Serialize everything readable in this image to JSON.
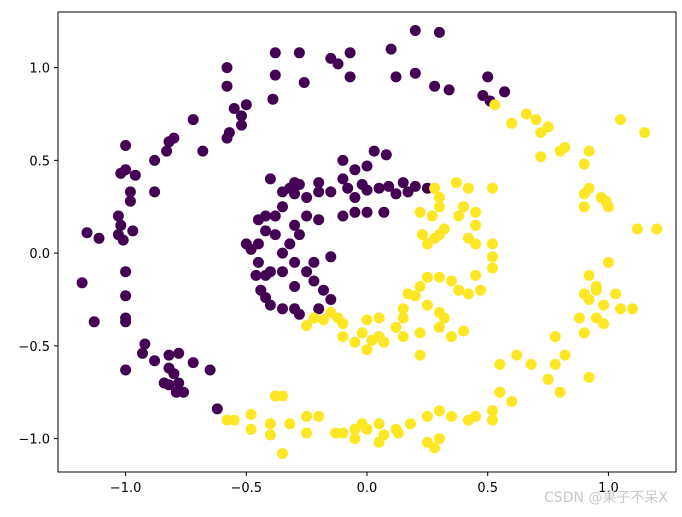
{
  "chart_data": {
    "type": "scatter",
    "title": "",
    "xlabel": "",
    "ylabel": "",
    "xlim": [
      -1.28,
      1.28
    ],
    "ylim": [
      -1.18,
      1.3
    ],
    "xticks": [
      -1.0,
      -0.5,
      0.0,
      0.5,
      1.0
    ],
    "yticks": [
      -1.0,
      -0.5,
      0.0,
      0.5,
      1.0
    ],
    "xtick_labels": [
      "−1.0",
      "−0.5",
      "0.0",
      "0.5",
      "1.0"
    ],
    "ytick_labels": [
      "−1.0",
      "−0.5",
      "0.0",
      "0.5",
      "1.0"
    ],
    "grid": false,
    "series": [
      {
        "color": "#440154",
        "points": [
          [
            0.2,
            1.2
          ],
          [
            0.3,
            1.19
          ],
          [
            0.1,
            1.1
          ],
          [
            -0.38,
            1.08
          ],
          [
            -0.28,
            1.08
          ],
          [
            -0.07,
            1.08
          ],
          [
            -0.15,
            1.05
          ],
          [
            -0.12,
            1.02
          ],
          [
            -0.07,
            0.95
          ],
          [
            0.12,
            0.95
          ],
          [
            -0.38,
            0.96
          ],
          [
            0.2,
            0.97
          ],
          [
            -0.58,
            1.0
          ],
          [
            0.28,
            0.9
          ],
          [
            0.34,
            0.88
          ],
          [
            0.5,
            0.95
          ],
          [
            -0.58,
            0.9
          ],
          [
            -0.26,
            0.92
          ],
          [
            -0.5,
            0.8
          ],
          [
            -0.55,
            0.78
          ],
          [
            -0.39,
            0.83
          ],
          [
            0.48,
            0.85
          ],
          [
            0.51,
            0.82
          ],
          [
            0.57,
            0.87
          ],
          [
            -0.52,
            0.74
          ],
          [
            -0.72,
            0.72
          ],
          [
            -0.52,
            0.69
          ],
          [
            -0.57,
            0.65
          ],
          [
            -0.58,
            0.62
          ],
          [
            -0.68,
            0.55
          ],
          [
            -0.8,
            0.62
          ],
          [
            -0.82,
            0.6
          ],
          [
            -0.83,
            0.55
          ],
          [
            -0.88,
            0.5
          ],
          [
            -1.0,
            0.58
          ],
          [
            -1.0,
            0.45
          ],
          [
            -1.02,
            0.43
          ],
          [
            -0.96,
            0.42
          ],
          [
            -0.98,
            0.33
          ],
          [
            -0.98,
            0.28
          ],
          [
            -0.88,
            0.33
          ],
          [
            -1.03,
            0.2
          ],
          [
            -1.02,
            0.15
          ],
          [
            -1.03,
            0.1
          ],
          [
            -1.01,
            0.07
          ],
          [
            -0.97,
            0.12
          ],
          [
            -1.11,
            0.08
          ],
          [
            -1.16,
            0.11
          ],
          [
            -1.18,
            -0.16
          ],
          [
            -1.0,
            -0.1
          ],
          [
            -1.0,
            -0.23
          ],
          [
            -1.0,
            -0.37
          ],
          [
            -1.13,
            -0.37
          ],
          [
            -1.0,
            -0.35
          ],
          [
            -0.92,
            -0.49
          ],
          [
            -0.93,
            -0.54
          ],
          [
            -1.0,
            -0.63
          ],
          [
            -0.88,
            -0.58
          ],
          [
            -0.82,
            -0.55
          ],
          [
            -0.78,
            -0.54
          ],
          [
            -0.82,
            -0.62
          ],
          [
            -0.72,
            -0.59
          ],
          [
            -0.84,
            -0.7
          ],
          [
            -0.82,
            -0.71
          ],
          [
            -0.8,
            -0.65
          ],
          [
            -0.79,
            -0.75
          ],
          [
            -0.76,
            -0.75
          ],
          [
            -0.78,
            -0.7
          ],
          [
            -0.65,
            -0.63
          ],
          [
            -0.62,
            -0.84
          ],
          [
            -0.4,
            0.4
          ],
          [
            -0.3,
            0.38
          ],
          [
            -0.35,
            0.33
          ],
          [
            -0.32,
            0.35
          ],
          [
            -0.28,
            0.37
          ],
          [
            -0.2,
            0.38
          ],
          [
            -0.1,
            0.4
          ],
          [
            -0.05,
            0.45
          ],
          [
            0.0,
            0.47
          ],
          [
            0.03,
            0.55
          ],
          [
            -0.1,
            0.5
          ],
          [
            0.08,
            0.53
          ],
          [
            0.09,
            0.36
          ],
          [
            0.15,
            0.38
          ],
          [
            0.17,
            0.33
          ],
          [
            0.2,
            0.36
          ],
          [
            0.25,
            0.35
          ],
          [
            0.12,
            0.32
          ],
          [
            0.05,
            0.35
          ],
          [
            -0.02,
            0.37
          ],
          [
            0.0,
            0.34
          ],
          [
            -0.05,
            0.3
          ],
          [
            -0.08,
            0.35
          ],
          [
            -0.15,
            0.33
          ],
          [
            -0.2,
            0.33
          ],
          [
            -0.25,
            0.3
          ],
          [
            -0.3,
            0.32
          ],
          [
            -0.35,
            0.25
          ],
          [
            -0.38,
            0.2
          ],
          [
            -0.42,
            0.2
          ],
          [
            -0.45,
            0.18
          ],
          [
            -0.42,
            0.12
          ],
          [
            -0.45,
            0.05
          ],
          [
            -0.48,
            0.02
          ],
          [
            -0.5,
            0.05
          ],
          [
            -0.45,
            -0.05
          ],
          [
            -0.4,
            -0.1
          ],
          [
            -0.42,
            -0.12
          ],
          [
            -0.46,
            -0.12
          ],
          [
            -0.44,
            -0.2
          ],
          [
            -0.42,
            -0.24
          ],
          [
            -0.4,
            -0.28
          ],
          [
            -0.35,
            -0.3
          ],
          [
            -0.3,
            -0.3
          ],
          [
            -0.28,
            -0.33
          ],
          [
            -0.2,
            -0.3
          ],
          [
            -0.15,
            -0.25
          ],
          [
            -0.18,
            -0.2
          ],
          [
            -0.22,
            -0.15
          ],
          [
            -0.25,
            -0.1
          ],
          [
            -0.3,
            -0.05
          ],
          [
            -0.35,
            0.0
          ],
          [
            -0.32,
            0.05
          ],
          [
            -0.28,
            0.1
          ],
          [
            -0.3,
            0.15
          ],
          [
            -0.25,
            0.2
          ],
          [
            -0.2,
            0.18
          ],
          [
            -0.1,
            0.2
          ],
          [
            -0.05,
            0.22
          ],
          [
            0.0,
            0.22
          ],
          [
            0.07,
            0.22
          ],
          [
            -0.3,
            -0.18
          ],
          [
            -0.35,
            -0.1
          ],
          [
            -0.22,
            -0.05
          ],
          [
            -0.15,
            -0.02
          ],
          [
            -0.38,
            0.1
          ]
        ]
      },
      {
        "color": "#fde725",
        "points": [
          [
            0.53,
            0.8
          ],
          [
            0.6,
            0.7
          ],
          [
            0.7,
            0.72
          ],
          [
            0.66,
            0.75
          ],
          [
            0.75,
            0.68
          ],
          [
            0.72,
            0.65
          ],
          [
            1.05,
            0.72
          ],
          [
            1.15,
            0.65
          ],
          [
            0.8,
            0.55
          ],
          [
            0.82,
            0.57
          ],
          [
            0.92,
            0.55
          ],
          [
            0.72,
            0.52
          ],
          [
            0.9,
            0.48
          ],
          [
            0.92,
            0.35
          ],
          [
            0.97,
            0.3
          ],
          [
            0.99,
            0.28
          ],
          [
            1.0,
            0.25
          ],
          [
            0.9,
            0.32
          ],
          [
            0.9,
            0.25
          ],
          [
            1.12,
            0.13
          ],
          [
            1.2,
            0.13
          ],
          [
            0.52,
            0.35
          ],
          [
            0.37,
            0.38
          ],
          [
            0.42,
            0.35
          ],
          [
            0.28,
            0.35
          ],
          [
            0.3,
            0.3
          ],
          [
            0.3,
            0.25
          ],
          [
            0.4,
            0.25
          ],
          [
            0.38,
            0.2
          ],
          [
            0.45,
            0.22
          ],
          [
            0.45,
            0.15
          ],
          [
            0.32,
            0.13
          ],
          [
            0.3,
            0.1
          ],
          [
            0.28,
            0.08
          ],
          [
            0.27,
            0.2
          ],
          [
            0.22,
            0.22
          ],
          [
            0.23,
            0.1
          ],
          [
            0.25,
            0.05
          ],
          [
            0.42,
            0.08
          ],
          [
            0.45,
            0.05
          ],
          [
            0.52,
            0.05
          ],
          [
            0.52,
            -0.02
          ],
          [
            0.52,
            -0.08
          ],
          [
            0.45,
            -0.12
          ],
          [
            0.47,
            -0.2
          ],
          [
            0.42,
            -0.22
          ],
          [
            0.38,
            -0.2
          ],
          [
            0.35,
            -0.15
          ],
          [
            0.3,
            -0.13
          ],
          [
            0.25,
            -0.13
          ],
          [
            0.22,
            -0.18
          ],
          [
            0.2,
            -0.23
          ],
          [
            0.17,
            -0.22
          ],
          [
            0.15,
            -0.3
          ],
          [
            0.15,
            -0.35
          ],
          [
            0.25,
            -0.28
          ],
          [
            0.3,
            -0.32
          ],
          [
            0.32,
            -0.35
          ],
          [
            0.3,
            -0.4
          ],
          [
            0.22,
            -0.43
          ],
          [
            0.15,
            -0.45
          ],
          [
            0.12,
            -0.4
          ],
          [
            0.05,
            -0.45
          ],
          [
            -0.02,
            -0.43
          ],
          [
            -0.05,
            -0.48
          ],
          [
            -0.1,
            -0.38
          ],
          [
            -0.12,
            -0.35
          ],
          [
            -0.15,
            -0.32
          ],
          [
            -0.18,
            -0.36
          ],
          [
            -0.22,
            -0.35
          ],
          [
            -0.25,
            -0.39
          ],
          [
            0.0,
            -0.52
          ],
          [
            0.02,
            -0.47
          ],
          [
            0.07,
            -0.48
          ],
          [
            0.0,
            -0.36
          ],
          [
            0.05,
            -0.35
          ],
          [
            -0.1,
            -0.45
          ],
          [
            0.35,
            -0.45
          ],
          [
            0.4,
            -0.42
          ],
          [
            0.22,
            -0.55
          ],
          [
            0.55,
            -0.6
          ],
          [
            0.55,
            -0.75
          ],
          [
            0.62,
            -0.55
          ],
          [
            0.68,
            -0.6
          ],
          [
            0.78,
            -0.6
          ],
          [
            0.82,
            -0.55
          ],
          [
            0.9,
            -0.43
          ],
          [
            0.95,
            -0.35
          ],
          [
            0.98,
            -0.38
          ],
          [
            1.05,
            -0.3
          ],
          [
            1.1,
            -0.3
          ],
          [
            0.88,
            -0.35
          ],
          [
            0.78,
            -0.45
          ],
          [
            0.92,
            -0.25
          ],
          [
            0.95,
            -0.2
          ],
          [
            0.9,
            -0.22
          ],
          [
            0.98,
            -0.28
          ],
          [
            1.03,
            -0.22
          ],
          [
            0.95,
            -0.18
          ],
          [
            0.92,
            -0.12
          ],
          [
            1.0,
            -0.05
          ],
          [
            0.75,
            -0.68
          ],
          [
            0.8,
            -0.75
          ],
          [
            0.92,
            -0.67
          ],
          [
            0.6,
            -0.8
          ],
          [
            0.52,
            -0.85
          ],
          [
            0.45,
            -0.88
          ],
          [
            0.35,
            -0.88
          ],
          [
            0.3,
            -0.85
          ],
          [
            0.25,
            -0.88
          ],
          [
            0.18,
            -0.92
          ],
          [
            0.13,
            -0.97
          ],
          [
            0.05,
            -0.92
          ],
          [
            0.07,
            -0.98
          ],
          [
            -0.02,
            -0.92
          ],
          [
            -0.05,
            -1.0
          ],
          [
            0.0,
            -0.95
          ],
          [
            0.12,
            -0.95
          ],
          [
            0.05,
            -1.02
          ],
          [
            0.25,
            -1.02
          ],
          [
            0.28,
            -1.05
          ],
          [
            0.3,
            -1.0
          ],
          [
            0.42,
            -0.9
          ],
          [
            0.52,
            -0.9
          ],
          [
            -0.2,
            -0.88
          ],
          [
            -0.25,
            -0.88
          ],
          [
            -0.1,
            -0.97
          ],
          [
            -0.13,
            -0.97
          ],
          [
            -0.05,
            -0.95
          ],
          [
            -0.38,
            -0.77
          ],
          [
            -0.35,
            -0.77
          ],
          [
            -0.55,
            -0.9
          ],
          [
            -0.48,
            -0.95
          ],
          [
            -0.48,
            -0.87
          ],
          [
            -0.4,
            -0.92
          ],
          [
            -0.4,
            -0.98
          ],
          [
            -0.32,
            -0.92
          ],
          [
            -0.25,
            -0.97
          ],
          [
            -0.35,
            -1.08
          ],
          [
            -0.58,
            -0.9
          ]
        ]
      }
    ]
  },
  "watermark": "CSDN @果子不呆X"
}
